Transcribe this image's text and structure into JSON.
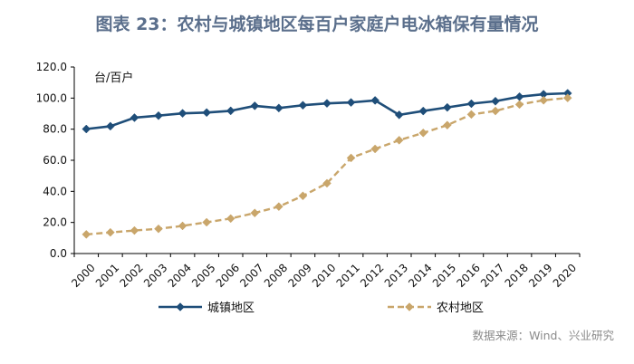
{
  "title": "图表 23：农村与城镇地区每百户家庭户电冰箱保有量情况",
  "source": "数据来源：Wind、兴业研究",
  "colors": {
    "urban": "#1f4e79",
    "rural": "#c9a66b",
    "title": "#5b6f8c",
    "axis": "#000000"
  },
  "chart_data": {
    "type": "line",
    "unit_label": "台/百户",
    "categories": [
      "2000",
      "2001",
      "2002",
      "2003",
      "2004",
      "2005",
      "2006",
      "2007",
      "2008",
      "2009",
      "2010",
      "2011",
      "2012",
      "2013",
      "2014",
      "2015",
      "2016",
      "2017",
      "2018",
      "2019",
      "2020"
    ],
    "ylim": [
      0,
      120
    ],
    "yticks": [
      "0.0",
      "20.0",
      "40.0",
      "60.0",
      "80.0",
      "100.0",
      "120.0"
    ],
    "grid": false,
    "legend_position": "bottom",
    "series": [
      {
        "name": "城镇地区",
        "style": "solid",
        "marker": "diamond",
        "values": [
          80.1,
          81.9,
          87.4,
          88.7,
          90.2,
          90.7,
          91.8,
          95.0,
          93.6,
          95.4,
          96.6,
          97.2,
          98.5,
          89.2,
          91.7,
          94.0,
          96.4,
          98.0,
          100.9,
          102.5,
          103.1
        ]
      },
      {
        "name": "农村地区",
        "style": "dashed",
        "marker": "diamond",
        "values": [
          12.3,
          13.6,
          14.8,
          15.9,
          17.8,
          20.1,
          22.5,
          26.1,
          30.2,
          37.1,
          45.2,
          61.5,
          67.3,
          72.9,
          77.6,
          82.6,
          89.5,
          91.7,
          95.9,
          98.6,
          100.1
        ]
      }
    ]
  }
}
